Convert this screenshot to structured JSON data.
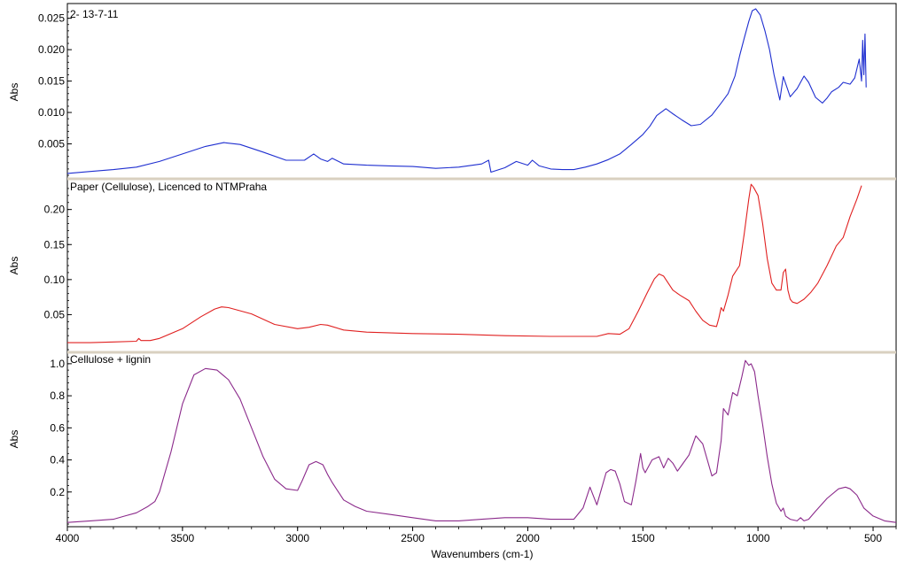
{
  "chart_data": {
    "type": "line",
    "xlabel": "Wavenumbers (cm-1)",
    "xlim": [
      4000,
      400
    ],
    "x_ticks": [
      4000,
      3500,
      3000,
      2500,
      2000,
      1500,
      1000,
      500
    ],
    "panels": [
      {
        "title": "2- 13-7-11",
        "ylabel": "Abs",
        "color": "#1f2fd0",
        "ylim": [
          0.0,
          0.0265
        ],
        "y_ticks": [
          0.005,
          0.01,
          0.015,
          0.02,
          0.025
        ],
        "y_tick_labels": [
          "0.005",
          "0.010",
          "0.015",
          "0.020",
          "0.025"
        ],
        "x": [
          4000,
          3900,
          3800,
          3700,
          3600,
          3500,
          3400,
          3320,
          3250,
          3150,
          3050,
          2970,
          2930,
          2900,
          2870,
          2850,
          2800,
          2700,
          2600,
          2500,
          2400,
          2300,
          2200,
          2170,
          2160,
          2100,
          2050,
          2000,
          1980,
          1950,
          1900,
          1850,
          1800,
          1750,
          1700,
          1650,
          1600,
          1550,
          1500,
          1470,
          1440,
          1400,
          1370,
          1330,
          1290,
          1250,
          1200,
          1160,
          1130,
          1100,
          1080,
          1060,
          1040,
          1025,
          1010,
          990,
          970,
          950,
          930,
          905,
          890,
          860,
          830,
          800,
          780,
          750,
          720,
          700,
          680,
          650,
          630,
          600,
          580,
          560,
          550,
          545,
          540,
          535,
          530
        ],
        "values": [
          0.0003,
          0.0006,
          0.0009,
          0.0013,
          0.0022,
          0.0034,
          0.0046,
          0.0052,
          0.0049,
          0.0037,
          0.0024,
          0.0024,
          0.0034,
          0.0026,
          0.0022,
          0.0027,
          0.0018,
          0.0016,
          0.0015,
          0.0014,
          0.0011,
          0.0013,
          0.0018,
          0.0024,
          0.0005,
          0.0012,
          0.0022,
          0.0016,
          0.0024,
          0.0015,
          0.001,
          0.0009,
          0.0009,
          0.0013,
          0.0018,
          0.0025,
          0.0034,
          0.0049,
          0.0065,
          0.0078,
          0.0095,
          0.0106,
          0.0098,
          0.0088,
          0.0079,
          0.0081,
          0.0096,
          0.0115,
          0.013,
          0.0158,
          0.019,
          0.0218,
          0.0245,
          0.0262,
          0.0265,
          0.0255,
          0.023,
          0.02,
          0.016,
          0.012,
          0.0157,
          0.0125,
          0.0138,
          0.0158,
          0.0148,
          0.0124,
          0.0115,
          0.0123,
          0.0133,
          0.014,
          0.0148,
          0.0145,
          0.0155,
          0.0185,
          0.015,
          0.0215,
          0.016,
          0.0225,
          0.014
        ]
      },
      {
        "title": "Paper (Cellulose), Licenced to NTMPraha",
        "ylabel": "Abs",
        "color": "#e02020",
        "ylim": [
          0.0,
          0.24
        ],
        "y_ticks": [
          0.05,
          0.1,
          0.15,
          0.2
        ],
        "y_tick_labels": [
          "0.05",
          "0.10",
          "0.15",
          "0.20"
        ],
        "x": [
          4000,
          3900,
          3800,
          3700,
          3690,
          3680,
          3640,
          3600,
          3500,
          3420,
          3360,
          3330,
          3300,
          3200,
          3100,
          3000,
          2950,
          2900,
          2870,
          2800,
          2700,
          2500,
          2300,
          2100,
          1900,
          1700,
          1650,
          1600,
          1560,
          1520,
          1480,
          1450,
          1430,
          1410,
          1390,
          1370,
          1340,
          1300,
          1270,
          1240,
          1210,
          1180,
          1170,
          1160,
          1150,
          1130,
          1110,
          1100,
          1080,
          1060,
          1040,
          1030,
          1020,
          1000,
          980,
          960,
          940,
          920,
          900,
          890,
          880,
          870,
          860,
          850,
          830,
          800,
          770,
          740,
          700,
          660,
          630,
          600,
          570,
          550
        ],
        "values": [
          0.01,
          0.01,
          0.011,
          0.012,
          0.016,
          0.013,
          0.013,
          0.016,
          0.03,
          0.047,
          0.058,
          0.061,
          0.06,
          0.051,
          0.036,
          0.03,
          0.032,
          0.036,
          0.035,
          0.028,
          0.025,
          0.023,
          0.022,
          0.02,
          0.019,
          0.019,
          0.023,
          0.022,
          0.03,
          0.055,
          0.082,
          0.101,
          0.108,
          0.105,
          0.095,
          0.085,
          0.078,
          0.07,
          0.055,
          0.042,
          0.035,
          0.033,
          0.045,
          0.06,
          0.055,
          0.078,
          0.105,
          0.11,
          0.12,
          0.165,
          0.215,
          0.236,
          0.232,
          0.22,
          0.18,
          0.13,
          0.095,
          0.085,
          0.085,
          0.11,
          0.115,
          0.085,
          0.072,
          0.068,
          0.066,
          0.072,
          0.082,
          0.095,
          0.12,
          0.148,
          0.16,
          0.19,
          0.215,
          0.234
        ]
      },
      {
        "title": "Cellulose + lignin",
        "ylabel": "Abs",
        "color": "#8b2a8b",
        "ylim": [
          0.0,
          1.06
        ],
        "y_ticks": [
          0.2,
          0.4,
          0.6,
          0.8,
          1.0
        ],
        "y_tick_labels": [
          "0.2",
          "0.4",
          "0.6",
          "0.8",
          "1.0"
        ],
        "x": [
          4000,
          3900,
          3800,
          3750,
          3700,
          3650,
          3620,
          3600,
          3550,
          3500,
          3450,
          3400,
          3350,
          3300,
          3250,
          3200,
          3150,
          3100,
          3050,
          3000,
          2980,
          2950,
          2920,
          2890,
          2870,
          2850,
          2800,
          2750,
          2700,
          2600,
          2500,
          2400,
          2300,
          2200,
          2100,
          2000,
          1900,
          1800,
          1760,
          1730,
          1700,
          1680,
          1660,
          1640,
          1620,
          1600,
          1580,
          1550,
          1530,
          1510,
          1500,
          1490,
          1460,
          1430,
          1410,
          1390,
          1370,
          1350,
          1330,
          1300,
          1270,
          1240,
          1220,
          1200,
          1180,
          1160,
          1150,
          1130,
          1110,
          1090,
          1070,
          1055,
          1040,
          1030,
          1015,
          1000,
          980,
          960,
          940,
          920,
          900,
          890,
          880,
          860,
          830,
          815,
          800,
          780,
          750,
          700,
          650,
          620,
          600,
          570,
          540,
          500,
          450,
          400
        ],
        "values": [
          0.01,
          0.02,
          0.03,
          0.05,
          0.07,
          0.11,
          0.14,
          0.2,
          0.45,
          0.75,
          0.93,
          0.97,
          0.96,
          0.9,
          0.78,
          0.6,
          0.42,
          0.28,
          0.22,
          0.21,
          0.27,
          0.37,
          0.39,
          0.37,
          0.31,
          0.26,
          0.15,
          0.11,
          0.08,
          0.06,
          0.04,
          0.02,
          0.02,
          0.03,
          0.04,
          0.04,
          0.03,
          0.03,
          0.1,
          0.23,
          0.12,
          0.22,
          0.32,
          0.34,
          0.33,
          0.25,
          0.14,
          0.12,
          0.27,
          0.44,
          0.35,
          0.32,
          0.4,
          0.42,
          0.35,
          0.41,
          0.38,
          0.33,
          0.37,
          0.43,
          0.55,
          0.5,
          0.4,
          0.3,
          0.32,
          0.52,
          0.72,
          0.68,
          0.82,
          0.8,
          0.92,
          1.02,
          0.99,
          1.0,
          0.95,
          0.8,
          0.62,
          0.42,
          0.25,
          0.13,
          0.08,
          0.1,
          0.05,
          0.03,
          0.02,
          0.04,
          0.02,
          0.03,
          0.08,
          0.16,
          0.22,
          0.23,
          0.22,
          0.18,
          0.1,
          0.05,
          0.02,
          0.01
        ]
      }
    ]
  }
}
